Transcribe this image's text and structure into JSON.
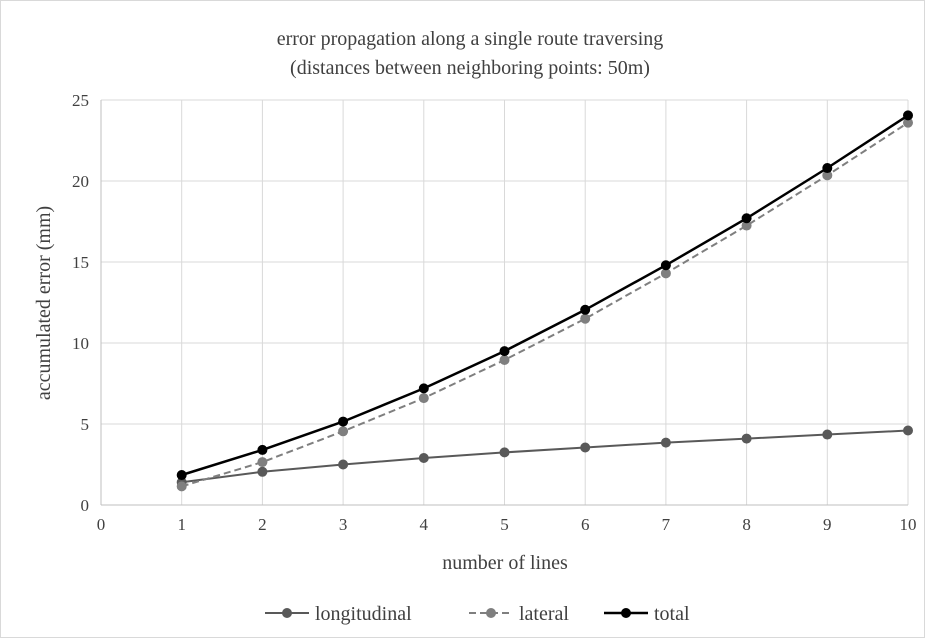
{
  "chart_data": {
    "type": "line",
    "title": "error propagation along a single route traversing",
    "subtitle": "(distances between neighboring points: 50m)",
    "xlabel": "number of lines",
    "ylabel": "accumulated error (mm)",
    "xlim": [
      0,
      10
    ],
    "ylim": [
      0,
      25
    ],
    "x_ticks": [
      0,
      1,
      2,
      3,
      4,
      5,
      6,
      7,
      8,
      9,
      10
    ],
    "y_ticks": [
      0,
      5,
      10,
      15,
      20,
      25
    ],
    "grid": true,
    "legend_position": "bottom",
    "x": [
      1,
      2,
      3,
      4,
      5,
      6,
      7,
      8,
      9,
      10
    ],
    "series": [
      {
        "name": "longitudinal",
        "style": "solid",
        "color": "#595959",
        "values": [
          1.4,
          2.05,
          2.5,
          2.9,
          3.25,
          3.55,
          3.85,
          4.1,
          4.35,
          4.6
        ]
      },
      {
        "name": "lateral",
        "style": "dashed",
        "color": "#7f7f7f",
        "values": [
          1.15,
          2.65,
          4.55,
          6.6,
          8.95,
          11.5,
          14.3,
          17.25,
          20.35,
          23.6
        ]
      },
      {
        "name": "total",
        "style": "solid",
        "color": "#000000",
        "values": [
          1.85,
          3.4,
          5.15,
          7.2,
          9.5,
          12.05,
          14.8,
          17.7,
          20.8,
          24.05
        ]
      }
    ]
  }
}
